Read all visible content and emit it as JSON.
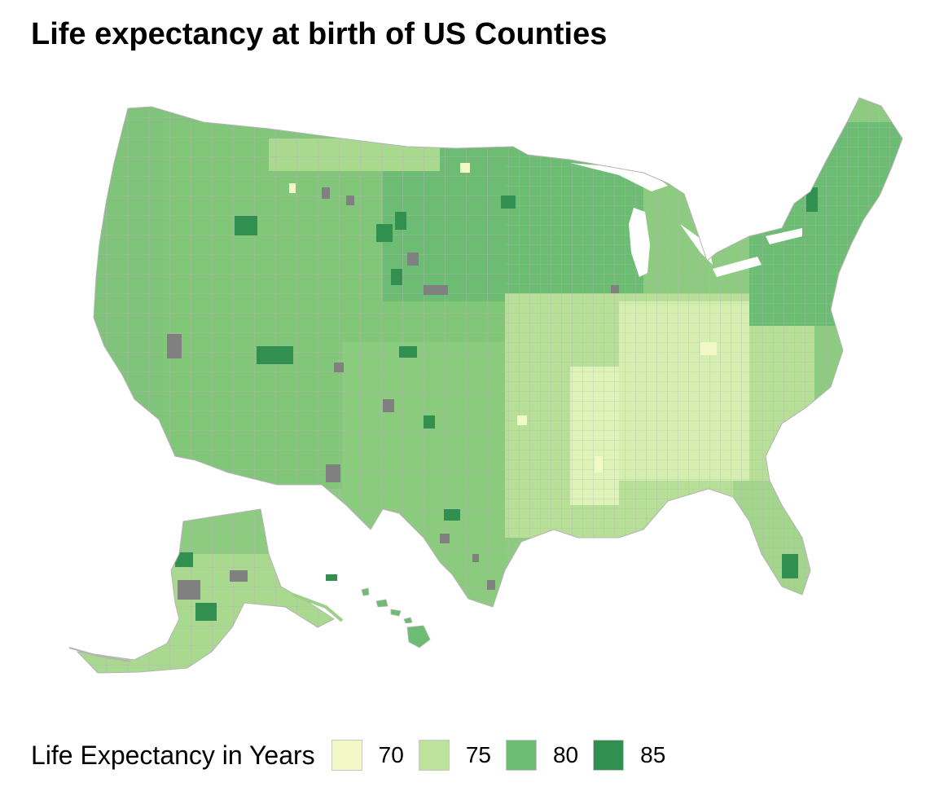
{
  "title": "Life expectancy at birth of US Counties",
  "legend": {
    "title": "Life Expectancy in Years",
    "items": [
      {
        "label": "70",
        "value": 70,
        "color": "#f2f9c7"
      },
      {
        "label": "75",
        "value": 75,
        "color": "#bde29b"
      },
      {
        "label": "80",
        "value": 80,
        "color": "#6dbc73"
      },
      {
        "label": "85",
        "value": 85,
        "color": "#318f50"
      }
    ]
  },
  "colors": {
    "no_data": "#808080",
    "county_border": "#b4b4b4",
    "background": "#ffffff"
  }
}
